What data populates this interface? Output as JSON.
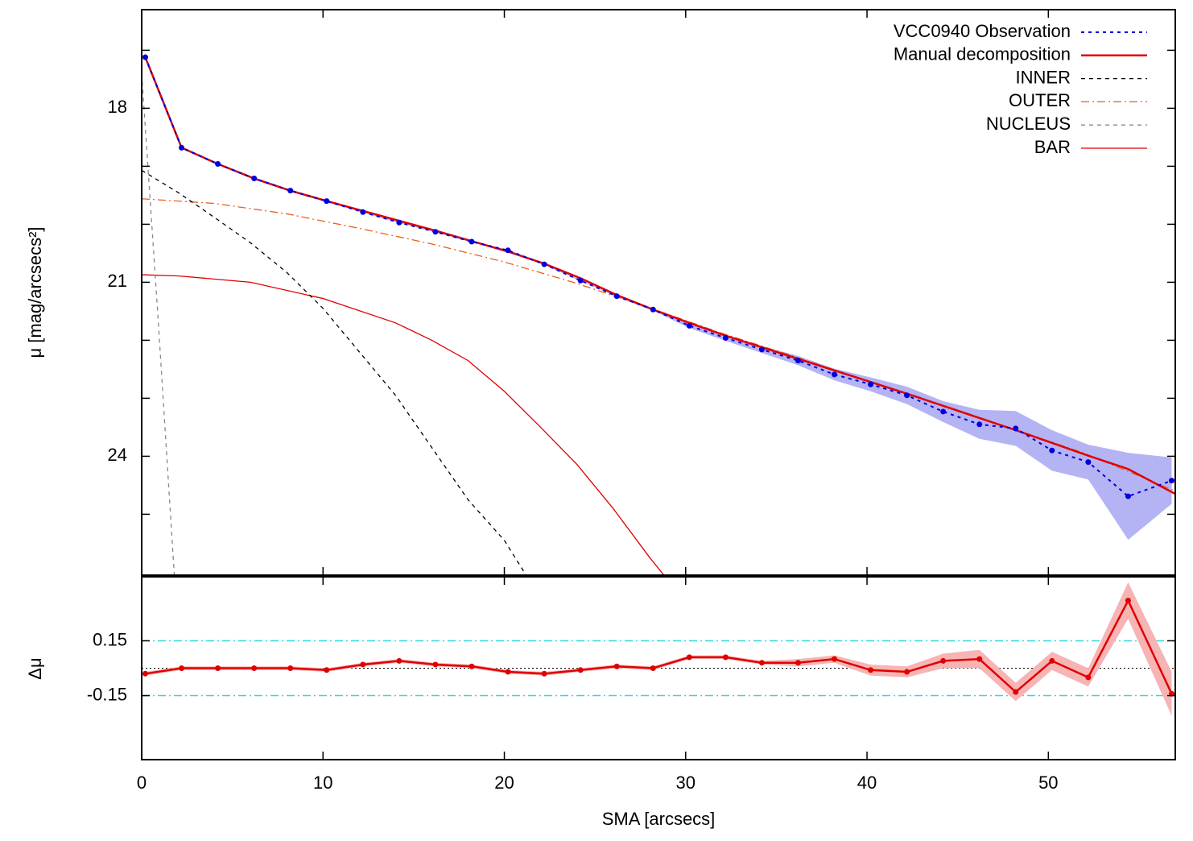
{
  "chart_data": [
    {
      "type": "line",
      "ylabel": "μ [mag/arcsecs²]",
      "ylim": [
        26.05,
        16.3
      ],
      "yticks": [
        18,
        21,
        24
      ],
      "yticks_minor": [
        17,
        19,
        20,
        22,
        23,
        25
      ],
      "legend": "upper right",
      "series": [
        {
          "name": "VCC0940 Observation",
          "color": "#0000dd",
          "style": "dotted",
          "marker": "circle",
          "band_color": "#b4b4f4",
          "x": [
            0.2,
            2.2,
            4.2,
            6.2,
            8.2,
            10.2,
            12.2,
            14.2,
            16.2,
            18.2,
            20.2,
            22.2,
            24.2,
            26.2,
            28.2,
            30.2,
            32.2,
            34.2,
            36.2,
            38.2,
            40.2,
            42.2,
            44.2,
            46.2,
            48.2,
            50.2,
            52.2,
            54.4,
            56.8
          ],
          "values": [
            17.12,
            18.68,
            18.96,
            19.21,
            19.42,
            19.6,
            19.79,
            19.97,
            20.13,
            20.3,
            20.45,
            20.69,
            20.97,
            21.24,
            21.47,
            21.75,
            21.96,
            22.16,
            22.35,
            22.59,
            22.76,
            22.95,
            23.23,
            23.45,
            23.52,
            23.9,
            24.1,
            24.69,
            24.42
          ],
          "errors": [
            0.01,
            0.01,
            0.01,
            0.01,
            0.01,
            0.01,
            0.01,
            0.01,
            0.01,
            0.01,
            0.01,
            0.01,
            0.01,
            0.01,
            0.02,
            0.04,
            0.05,
            0.06,
            0.08,
            0.1,
            0.12,
            0.15,
            0.18,
            0.25,
            0.3,
            0.35,
            0.3,
            0.75,
            0.4
          ]
        },
        {
          "name": "Manual decomposition",
          "color": "#e00000",
          "style": "solid",
          "width": 2.5,
          "x": [
            0.2,
            2.2,
            4.2,
            6.2,
            8.2,
            10.2,
            12.2,
            14.2,
            16.2,
            18.2,
            20.2,
            22.2,
            24.2,
            26.2,
            28.2,
            30.2,
            32.2,
            34.2,
            36.2,
            38.2,
            40.2,
            42.2,
            44.2,
            46.2,
            48.2,
            50.2,
            52.2,
            54.4,
            57
          ],
          "values": [
            17.12,
            18.68,
            18.96,
            19.21,
            19.42,
            19.6,
            19.77,
            19.94,
            20.11,
            20.29,
            20.47,
            20.68,
            20.93,
            21.22,
            21.47,
            21.7,
            21.92,
            22.12,
            22.32,
            22.52,
            22.72,
            22.92,
            23.13,
            23.34,
            23.55,
            23.77,
            23.99,
            24.22,
            24.65
          ]
        },
        {
          "name": "INNER",
          "color": "#000000",
          "style": "dashed",
          "width": 1.3,
          "x": [
            0,
            2,
            4,
            6,
            8,
            10,
            12,
            14,
            16,
            18,
            20,
            21.2
          ],
          "values": [
            19.07,
            19.45,
            19.88,
            20.32,
            20.83,
            21.45,
            22.2,
            22.95,
            23.85,
            24.75,
            25.45,
            26.05
          ]
        },
        {
          "name": "OUTER",
          "color": "#e8601c",
          "style": "dashdot",
          "width": 1.3,
          "x": [
            0,
            4,
            8,
            12,
            16,
            20,
            24,
            28,
            32,
            36,
            40,
            44,
            48,
            52,
            57
          ],
          "values": [
            19.56,
            19.64,
            19.82,
            20.07,
            20.34,
            20.65,
            21.02,
            21.44,
            21.88,
            22.28,
            22.7,
            23.1,
            23.52,
            23.95,
            24.6
          ]
        },
        {
          "name": "NUCLEUS",
          "color": "#888888",
          "style": "dashed",
          "width": 1.3,
          "x": [
            0,
            0.9,
            1.8
          ],
          "values": [
            17.4,
            21.6,
            26.05
          ]
        },
        {
          "name": "BAR",
          "color": "#e00000",
          "style": "solid",
          "width": 1.3,
          "x": [
            0,
            2,
            6,
            10,
            14,
            16,
            18,
            20,
            22,
            24,
            26,
            28,
            28.8
          ],
          "values": [
            20.87,
            20.89,
            21.0,
            21.28,
            21.7,
            22.0,
            22.35,
            22.88,
            23.5,
            24.14,
            24.9,
            25.74,
            26.05
          ]
        }
      ]
    },
    {
      "type": "line",
      "ylabel": "Δμ",
      "xlabel": "SMA [arcsecs]",
      "xlim": [
        0,
        57
      ],
      "xticks": [
        0,
        10,
        20,
        30,
        40,
        50
      ],
      "ylim": [
        -0.5,
        0.5
      ],
      "yticks": [
        0.15,
        -0.15
      ],
      "reference_lines": [
        {
          "value": 0.15,
          "color": "#30d8d8",
          "style": "dashdot"
        },
        {
          "value": -0.15,
          "color": "#30d8d8",
          "style": "dashdot"
        },
        {
          "value": 0,
          "color": "#000000",
          "style": "dotted"
        }
      ],
      "series": [
        {
          "color": "#e00000",
          "style": "solid",
          "width": 2.5,
          "marker": "circle",
          "band_color": "#f6b4b4",
          "x": [
            0.2,
            2.2,
            4.2,
            6.2,
            8.2,
            10.2,
            12.2,
            14.2,
            16.2,
            18.2,
            20.2,
            22.2,
            24.2,
            26.2,
            28.2,
            30.2,
            32.2,
            34.2,
            36.2,
            38.2,
            40.2,
            42.2,
            44.2,
            46.2,
            48.2,
            50.2,
            52.2,
            54.4,
            56.8
          ],
          "values": [
            -0.03,
            0.0,
            0.0,
            0.0,
            0.0,
            -0.01,
            0.02,
            0.04,
            0.02,
            0.01,
            -0.02,
            -0.03,
            -0.01,
            0.01,
            0.0,
            0.06,
            0.06,
            0.03,
            0.03,
            0.05,
            -0.01,
            -0.02,
            0.04,
            0.05,
            -0.13,
            0.04,
            -0.05,
            0.37,
            -0.14
          ],
          "errors": [
            0.01,
            0.01,
            0.01,
            0.01,
            0.01,
            0.01,
            0.01,
            0.01,
            0.01,
            0.01,
            0.01,
            0.01,
            0.01,
            0.01,
            0.01,
            0.01,
            0.01,
            0.01,
            0.02,
            0.02,
            0.03,
            0.03,
            0.04,
            0.05,
            0.05,
            0.05,
            0.05,
            0.1,
            0.12
          ]
        }
      ]
    }
  ]
}
